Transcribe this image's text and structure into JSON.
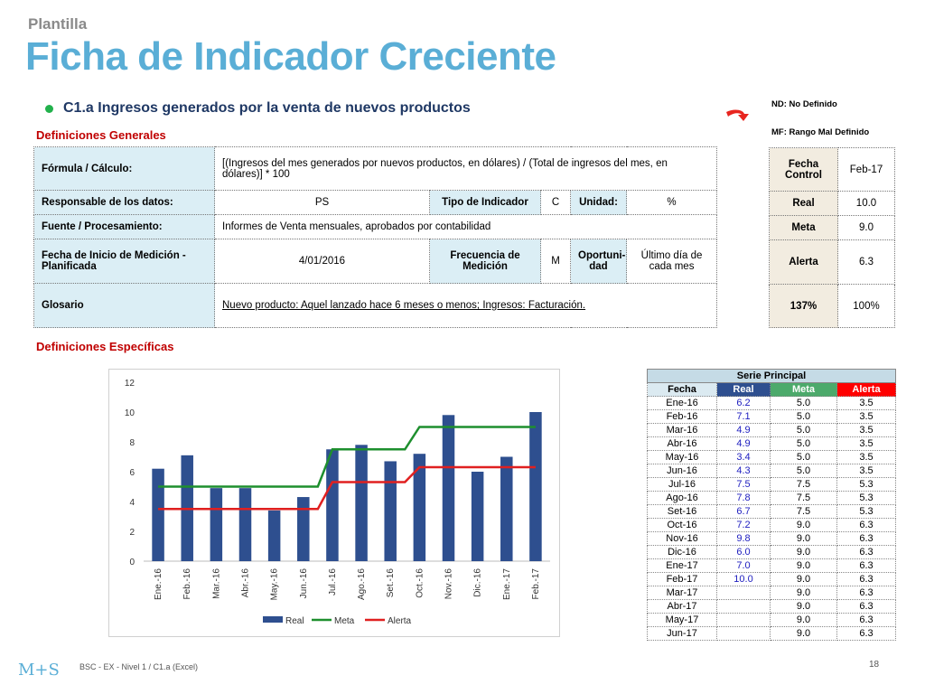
{
  "header": {
    "kicker": "Plantilla",
    "title": "Ficha de Indicador Creciente"
  },
  "indicator": {
    "title": "C1.a Ingresos generados por la venta de nuevos productos"
  },
  "sections": {
    "general": "Definiciones Generales",
    "specific": "Definiciones Específicas"
  },
  "definitions": {
    "formula_label": "Fórmula / Cálculo:",
    "formula_value": "[(Ingresos del mes generados por nuevos productos, en dólares) / (Total de ingresos del mes, en dólares)] * 100",
    "responsible_label": "Responsable de los datos:",
    "responsible_value": "PS",
    "type_label": "Tipo de Indicador",
    "type_value": "C",
    "unit_label": "Unidad:",
    "unit_value": "%",
    "source_label": "Fuente / Procesamiento:",
    "source_value": "Informes de Venta mensuales, aprobados por contabilidad",
    "start_label": "Fecha de Inicio de Medición - Planificada",
    "start_value": "4/01/2016",
    "freq_label": "Frecuencia de Medición",
    "freq_value": "M",
    "opport_label": "Oportuni-dad",
    "opport_value": "Último día de cada mes",
    "glossary_label": "Glosario",
    "glossary_value": "Nuevo producto: Aquel lanzado hace 6 meses o menos; Ingresos: Facturación."
  },
  "notes": {
    "nd": "ND: No Definido",
    "mf": "MF: Rango Mal Definido"
  },
  "colors": {
    "arrow": "#e8251f",
    "real": "#2e4f8f",
    "meta": "#1e8f2e",
    "alerta": "#e02020"
  },
  "status": {
    "control_label": "Fecha Control",
    "control_value": "Feb-17",
    "real_label": "Real",
    "real_value": "10.0",
    "meta_label": "Meta",
    "meta_value": "9.0",
    "alert_label": "Alerta",
    "alert_value": "6.3",
    "pct_label": "137%",
    "pct_value": "100%"
  },
  "series_table": {
    "title": "Serie Principal",
    "headers": [
      "Fecha",
      "Real",
      "Meta",
      "Alerta"
    ],
    "rows": [
      [
        "Ene-16",
        "6.2",
        "5.0",
        "3.5"
      ],
      [
        "Feb-16",
        "7.1",
        "5.0",
        "3.5"
      ],
      [
        "Mar-16",
        "4.9",
        "5.0",
        "3.5"
      ],
      [
        "Abr-16",
        "4.9",
        "5.0",
        "3.5"
      ],
      [
        "May-16",
        "3.4",
        "5.0",
        "3.5"
      ],
      [
        "Jun-16",
        "4.3",
        "5.0",
        "3.5"
      ],
      [
        "Jul-16",
        "7.5",
        "7.5",
        "5.3"
      ],
      [
        "Ago-16",
        "7.8",
        "7.5",
        "5.3"
      ],
      [
        "Set-16",
        "6.7",
        "7.5",
        "5.3"
      ],
      [
        "Oct-16",
        "7.2",
        "9.0",
        "6.3"
      ],
      [
        "Nov-16",
        "9.8",
        "9.0",
        "6.3"
      ],
      [
        "Dic-16",
        "6.0",
        "9.0",
        "6.3"
      ],
      [
        "Ene-17",
        "7.0",
        "9.0",
        "6.3"
      ],
      [
        "Feb-17",
        "10.0",
        "9.0",
        "6.3"
      ],
      [
        "Mar-17",
        "",
        "9.0",
        "6.3"
      ],
      [
        "Abr-17",
        "",
        "9.0",
        "6.3"
      ],
      [
        "May-17",
        "",
        "9.0",
        "6.3"
      ],
      [
        "Jun-17",
        "",
        "9.0",
        "6.3"
      ]
    ]
  },
  "chart_data": {
    "type": "bar",
    "categories": [
      "Ene.-16",
      "Feb.-16",
      "Mar.-16",
      "Abr.-16",
      "May.-16",
      "Jun.-16",
      "Jul.-16",
      "Ago.-16",
      "Set.-16",
      "Oct.-16",
      "Nov.-16",
      "Dic.-16",
      "Ene.-17",
      "Feb.-17"
    ],
    "series": [
      {
        "name": "Real",
        "type": "bar",
        "values": [
          6.2,
          7.1,
          4.9,
          4.9,
          3.4,
          4.3,
          7.5,
          7.8,
          6.7,
          7.2,
          9.8,
          6.0,
          7.0,
          10.0
        ]
      },
      {
        "name": "Meta",
        "type": "line",
        "values": [
          5.0,
          5.0,
          5.0,
          5.0,
          5.0,
          5.0,
          7.5,
          7.5,
          7.5,
          9.0,
          9.0,
          9.0,
          9.0,
          9.0
        ]
      },
      {
        "name": "Alerta",
        "type": "line",
        "values": [
          3.5,
          3.5,
          3.5,
          3.5,
          3.5,
          3.5,
          5.3,
          5.3,
          5.3,
          6.3,
          6.3,
          6.3,
          6.3,
          6.3
        ]
      }
    ],
    "yticks": [
      "0",
      "2",
      "4",
      "6",
      "8",
      "10",
      "12"
    ],
    "ylim": [
      0,
      12
    ],
    "grid": false,
    "legend": "bottom"
  },
  "footer": {
    "logo": "M+S",
    "text": "BSC - EX - Nivel 1 / C1.a (Excel)",
    "page": "18"
  }
}
